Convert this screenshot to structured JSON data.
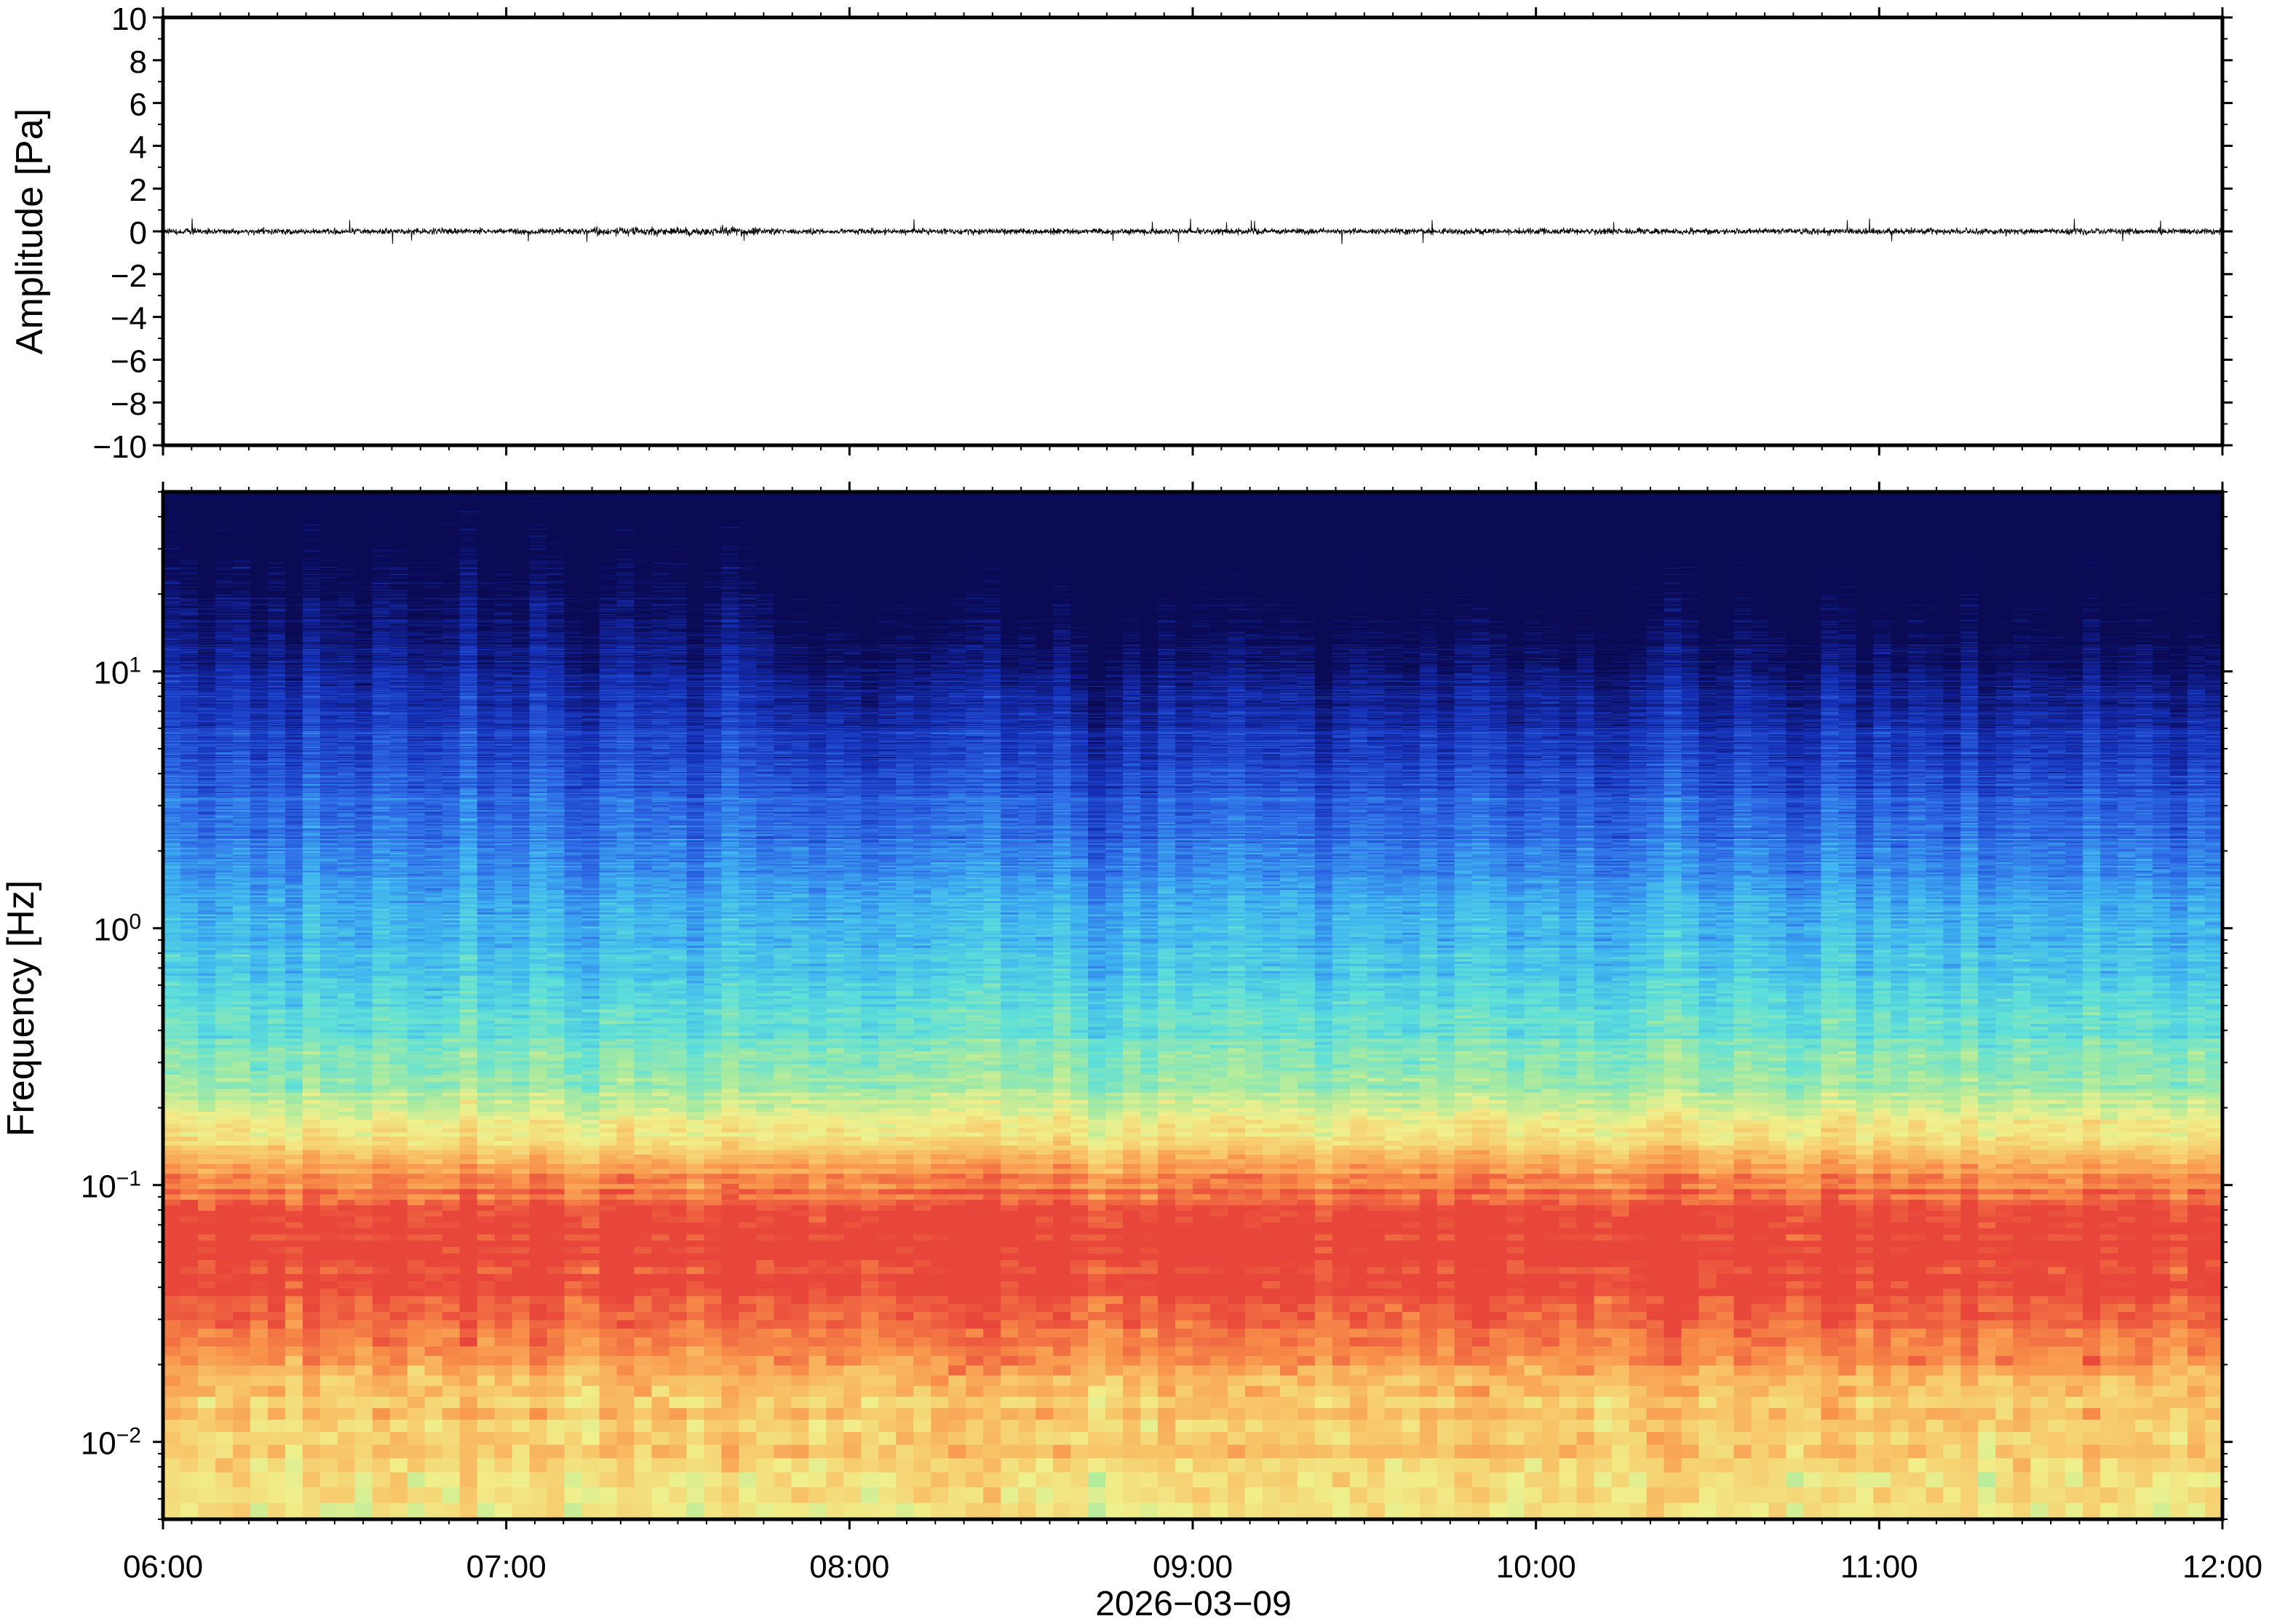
{
  "chart_data": [
    {
      "type": "line",
      "panel": "waveform",
      "ylabel": "Amplitude [Pa]",
      "ylim": [
        -10,
        10
      ],
      "yticks": [
        10,
        8,
        6,
        4,
        2,
        0,
        -2,
        -4,
        -6,
        -8,
        -10
      ],
      "ytick_labels": [
        "10",
        "8",
        "6",
        "4",
        "2",
        "0",
        "−2",
        "−4",
        "−6",
        "−8",
        "−10"
      ],
      "xlim": [
        "06:00",
        "12:00"
      ],
      "series": [
        {
          "color": "#000000",
          "baseline": 0,
          "typical_peak_amplitude": 0.4,
          "max_peak_amplitude": 0.6,
          "louder_interval": [
            "07:15",
            "07:45"
          ]
        }
      ],
      "grid": false
    },
    {
      "type": "heatmap",
      "panel": "spectrogram",
      "ylabel": "Frequency [Hz]",
      "yscale": "log",
      "ylim": [
        0.005,
        50
      ],
      "yticks": [
        {
          "base": "10",
          "exp": "1",
          "value": 10
        },
        {
          "base": "10",
          "exp": "0",
          "value": 1
        },
        {
          "base": "10",
          "exp": "−1",
          "value": 0.1
        },
        {
          "base": "10",
          "exp": "−2",
          "value": 0.01
        }
      ],
      "colormap": [
        "#0b0a55",
        "#1530b8",
        "#2e6ae6",
        "#3fb4f0",
        "#5fe0d8",
        "#a8eaa0",
        "#f0f08c",
        "#f8c468",
        "#f8904a",
        "#e8453a"
      ],
      "xlim": [
        "06:00",
        "12:00"
      ],
      "xticks": [
        "06:00",
        "07:00",
        "08:00",
        "09:00",
        "10:00",
        "11:00",
        "12:00"
      ],
      "xlabel": "2026−03−09",
      "grid": false
    }
  ],
  "icons": [
    "waveform-plot",
    "spectrogram-plot"
  ]
}
